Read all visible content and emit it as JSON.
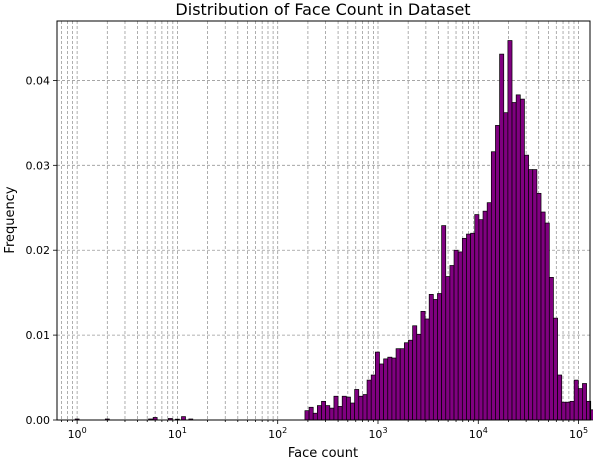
{
  "chart_data": {
    "type": "bar",
    "title": "Distribution of Face Count in Dataset",
    "xlabel": "Face count",
    "ylabel": "Frequency",
    "x_scale": "log",
    "xlim": [
      0.63,
      130000
    ],
    "ylim": [
      0,
      0.047
    ],
    "grid": true,
    "bar_color": "#800080",
    "edge_color": "#000000",
    "x_ticks": [
      {
        "value": 1,
        "base": "10",
        "exp": "0"
      },
      {
        "value": 10,
        "base": "10",
        "exp": "1"
      },
      {
        "value": 100,
        "base": "10",
        "exp": "2"
      },
      {
        "value": 1000,
        "base": "10",
        "exp": "3"
      },
      {
        "value": 10000,
        "base": "10",
        "exp": "4"
      },
      {
        "value": 100000,
        "base": "10",
        "exp": "5"
      }
    ],
    "y_ticks": [
      {
        "value": 0,
        "label": "0.00"
      },
      {
        "value": 0.01,
        "label": "0.01"
      },
      {
        "value": 0.02,
        "label": "0.02"
      },
      {
        "value": 0.03,
        "label": "0.03"
      },
      {
        "value": 0.04,
        "label": "0.04"
      }
    ],
    "bin_log_start": 0.0,
    "bin_log_width": 0.0413,
    "values": [
      0,
      0,
      0,
      0,
      0,
      0,
      0,
      0,
      0,
      0,
      0,
      0,
      0,
      0,
      0,
      0,
      0,
      0,
      0,
      0,
      0,
      0,
      0,
      0,
      0,
      0,
      0,
      0,
      0,
      0,
      0,
      0,
      0,
      0,
      0,
      0,
      0,
      0,
      0,
      0,
      0,
      0,
      0,
      0,
      0,
      0,
      0,
      0,
      0,
      0,
      0,
      0,
      0,
      0,
      0,
      0.0011,
      0.0015,
      0.0008,
      0.0017,
      0.0022,
      0.0017,
      0.0014,
      0.0028,
      0.0016,
      0.0028,
      0.0027,
      0.002,
      0.0036,
      0.0028,
      0.003,
      0.0047,
      0.0053,
      0.008,
      0.0066,
      0.0072,
      0.0074,
      0.0073,
      0.0084,
      0.0084,
      0.0091,
      0.0094,
      0.0111,
      0.0101,
      0.0128,
      0.0119,
      0.0148,
      0.0142,
      0.0149,
      0.0229,
      0.0169,
      0.0182,
      0.02,
      0.0198,
      0.0214,
      0.0219,
      0.022,
      0.0242,
      0.0236,
      0.0246,
      0.0256,
      0.0316,
      0.0347,
      0.0431,
      0.0362,
      0.0447,
      0.0374,
      0.0383,
      0.0378,
      0.0312,
      0.0295,
      0.0295,
      0.0267,
      0.0245,
      0.0232,
      0.0168,
      0.012,
      0.0053,
      0.0021,
      0.0021,
      0.0022,
      0.0047,
      0.0037,
      0.0043,
      0.0022,
      0.0012,
      0.0007,
      0.0004,
      0.0002,
      0.0001,
      0,
      0,
      0,
      0,
      0,
      0,
      0,
      0,
      0,
      0,
      0
    ],
    "sparse_bins": [
      {
        "x": 1.0,
        "value": 0.00012
      },
      {
        "x": 2.0,
        "value": 0.00012
      },
      {
        "x": 5.4,
        "value": 0.00012
      },
      {
        "x": 6.0,
        "value": 0.0003
      },
      {
        "x": 8.5,
        "value": 0.00018
      },
      {
        "x": 10.0,
        "value": 0.0001
      },
      {
        "x": 11.5,
        "value": 0.0004
      },
      {
        "x": 13.6,
        "value": 0.00012
      }
    ]
  }
}
